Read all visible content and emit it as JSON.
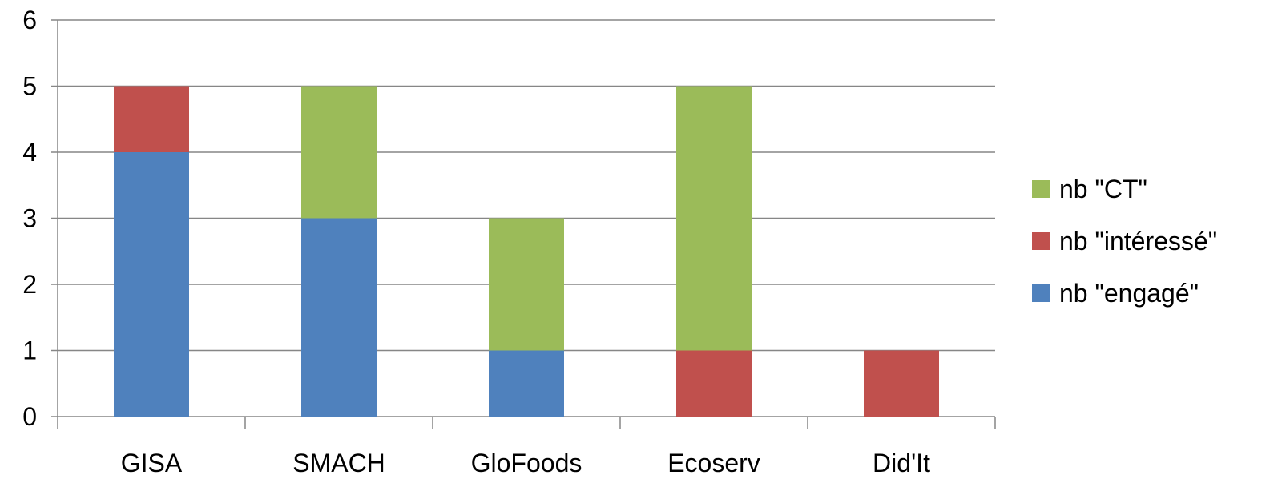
{
  "chart_data": {
    "type": "bar",
    "stacked": true,
    "categories": [
      "GISA",
      "SMACH",
      "GloFoods",
      "Ecoserv",
      "Did'It"
    ],
    "series": [
      {
        "name": "nb \"engagé\"",
        "values": [
          4,
          3,
          1,
          0,
          0
        ],
        "color": "#4F81BD"
      },
      {
        "name": "nb \"intéressé\"",
        "values": [
          1,
          0,
          0,
          1,
          1
        ],
        "color": "#C0504D"
      },
      {
        "name": "nb \"CT\"",
        "values": [
          0,
          2,
          2,
          4,
          0
        ],
        "color": "#9BBB59"
      }
    ],
    "ylim": [
      0,
      6
    ],
    "yticks": [
      "0",
      "1",
      "2",
      "3",
      "4",
      "5",
      "6"
    ],
    "grid": true,
    "legend": {
      "position": "right",
      "order": [
        "nb \"CT\"",
        "nb \"intéressé\"",
        "nb \"engagé\""
      ]
    }
  }
}
